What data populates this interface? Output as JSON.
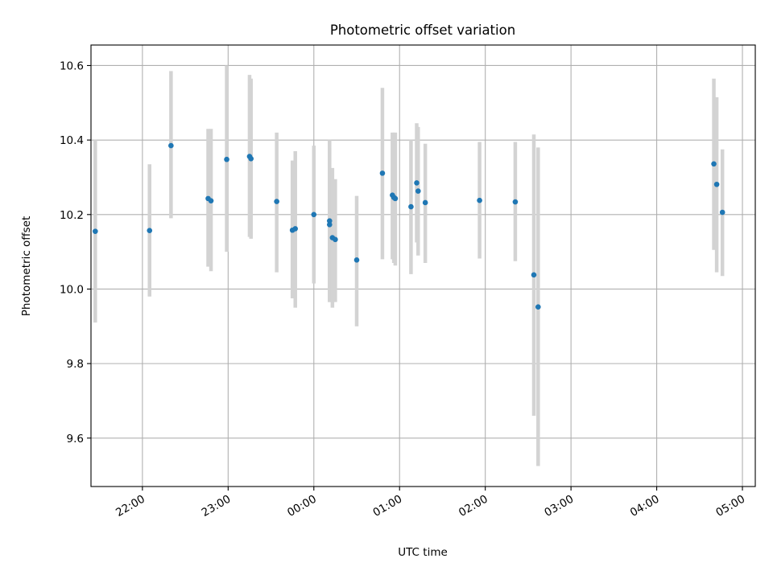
{
  "chart_data": {
    "type": "scatter",
    "title": "Photometric offset variation",
    "xlabel": "UTC time",
    "ylabel": "Photometric offset",
    "x_axis": "time",
    "xlim": [
      "21:24",
      "05:09"
    ],
    "ylim": [
      9.47,
      10.655
    ],
    "x_ticks": [
      "22:00",
      "23:00",
      "00:00",
      "01:00",
      "02:00",
      "03:00",
      "04:00",
      "05:00"
    ],
    "y_ticks": [
      "9.6",
      "9.8",
      "10.0",
      "10.2",
      "10.4",
      "10.6"
    ],
    "grid": true,
    "colors": {
      "point": "#1f77b4",
      "errorbar": "#d3d3d3",
      "grid": "#b0b0b0"
    },
    "points": [
      {
        "x": "21:27",
        "y": 10.155,
        "ylo": 9.91,
        "yhi": 10.4
      },
      {
        "x": "22:05",
        "y": 10.157,
        "ylo": 9.98,
        "yhi": 10.335
      },
      {
        "x": "22:20",
        "y": 10.385,
        "ylo": 10.19,
        "yhi": 10.585
      },
      {
        "x": "22:46",
        "y": 10.243,
        "ylo": 10.06,
        "yhi": 10.43
      },
      {
        "x": "22:48",
        "y": 10.237,
        "ylo": 10.048,
        "yhi": 10.43
      },
      {
        "x": "22:59",
        "y": 10.348,
        "ylo": 10.1,
        "yhi": 10.6
      },
      {
        "x": "23:15",
        "y": 10.356,
        "ylo": 10.14,
        "yhi": 10.575
      },
      {
        "x": "23:16",
        "y": 10.35,
        "ylo": 10.135,
        "yhi": 10.565
      },
      {
        "x": "23:34",
        "y": 10.235,
        "ylo": 10.045,
        "yhi": 10.42
      },
      {
        "x": "23:45",
        "y": 10.158,
        "ylo": 9.975,
        "yhi": 10.345
      },
      {
        "x": "23:47",
        "y": 10.162,
        "ylo": 9.95,
        "yhi": 10.37
      },
      {
        "x": "00:00",
        "y": 10.2,
        "ylo": 10.015,
        "yhi": 10.385
      },
      {
        "x": "00:11",
        "y": 10.183,
        "ylo": 9.965,
        "yhi": 10.4
      },
      {
        "x": "00:11",
        "y": 10.173,
        "ylo": 9.965,
        "yhi": 10.38
      },
      {
        "x": "00:13",
        "y": 10.138,
        "ylo": 9.95,
        "yhi": 10.325
      },
      {
        "x": "00:15",
        "y": 10.133,
        "ylo": 9.965,
        "yhi": 10.295
      },
      {
        "x": "00:30",
        "y": 10.078,
        "ylo": 9.9,
        "yhi": 10.25
      },
      {
        "x": "00:48",
        "y": 10.311,
        "ylo": 10.08,
        "yhi": 10.54
      },
      {
        "x": "00:55",
        "y": 10.252,
        "ylo": 10.08,
        "yhi": 10.42
      },
      {
        "x": "00:56",
        "y": 10.246,
        "ylo": 10.07,
        "yhi": 10.42
      },
      {
        "x": "00:57",
        "y": 10.243,
        "ylo": 10.063,
        "yhi": 10.42
      },
      {
        "x": "01:08",
        "y": 10.221,
        "ylo": 10.04,
        "yhi": 10.4
      },
      {
        "x": "01:12",
        "y": 10.285,
        "ylo": 10.125,
        "yhi": 10.445
      },
      {
        "x": "01:13",
        "y": 10.263,
        "ylo": 10.09,
        "yhi": 10.435
      },
      {
        "x": "01:18",
        "y": 10.232,
        "ylo": 10.07,
        "yhi": 10.39
      },
      {
        "x": "01:56",
        "y": 10.238,
        "ylo": 10.082,
        "yhi": 10.395
      },
      {
        "x": "02:21",
        "y": 10.234,
        "ylo": 10.075,
        "yhi": 10.395
      },
      {
        "x": "02:34",
        "y": 10.038,
        "ylo": 9.66,
        "yhi": 10.415
      },
      {
        "x": "02:37",
        "y": 9.952,
        "ylo": 9.525,
        "yhi": 10.38
      },
      {
        "x": "04:40",
        "y": 10.336,
        "ylo": 10.105,
        "yhi": 10.565
      },
      {
        "x": "04:42",
        "y": 10.281,
        "ylo": 10.045,
        "yhi": 10.515
      },
      {
        "x": "04:46",
        "y": 10.206,
        "ylo": 10.035,
        "yhi": 10.375
      }
    ]
  }
}
